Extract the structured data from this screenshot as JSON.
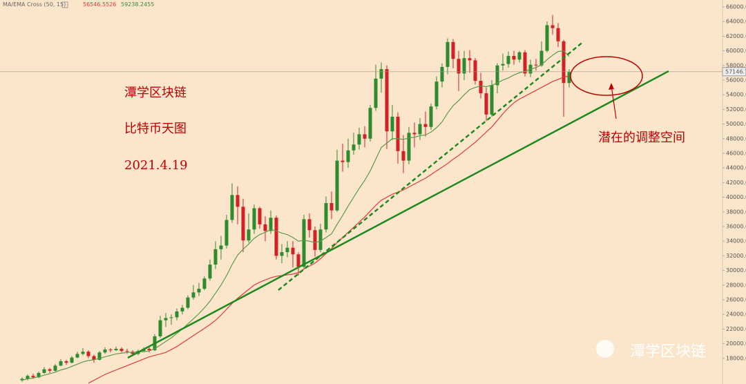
{
  "chart_data": {
    "type": "candlestick",
    "ylim": [
      14490,
      66940
    ],
    "yticks": [
      {
        "value": 18000,
        "label": "18000.00"
      },
      {
        "value": 20000,
        "label": "20000.00"
      },
      {
        "value": 22000,
        "label": "22000.00"
      },
      {
        "value": 24000,
        "label": "24000.00"
      },
      {
        "value": 26000,
        "label": "26000.00"
      },
      {
        "value": 28000,
        "label": "28000.00"
      },
      {
        "value": 30000,
        "label": "30000.00"
      },
      {
        "value": 32000,
        "label": "32000.00"
      },
      {
        "value": 34000,
        "label": "34000.00"
      },
      {
        "value": 36000,
        "label": "36000.00"
      },
      {
        "value": 38000,
        "label": "38000.00"
      },
      {
        "value": 40000,
        "label": "40000.00"
      },
      {
        "value": 42000,
        "label": "42000.00"
      },
      {
        "value": 44000,
        "label": "44000.00"
      },
      {
        "value": 46000,
        "label": "46000.00"
      },
      {
        "value": 48000,
        "label": "48000.00"
      },
      {
        "value": 50000,
        "label": "50000.00"
      },
      {
        "value": 52000,
        "label": "52000.00"
      },
      {
        "value": 54000,
        "label": "54000.00"
      },
      {
        "value": 56000,
        "label": "56000.00"
      },
      {
        "value": 58000,
        "label": "58000.00"
      },
      {
        "value": 60000,
        "label": "60000.00"
      },
      {
        "value": 62000,
        "label": "62000.00"
      },
      {
        "value": 64000,
        "label": "64000.00"
      },
      {
        "value": 66000,
        "label": "66000.00"
      }
    ],
    "up_color": "#2e8b2e",
    "down_color": "#d42020",
    "candles": [
      [
        15000,
        15400,
        14800,
        15200
      ],
      [
        15200,
        15800,
        15000,
        15600
      ],
      [
        15600,
        15900,
        15200,
        15400
      ],
      [
        15400,
        16200,
        15300,
        16000
      ],
      [
        16000,
        16800,
        15900,
        16500
      ],
      [
        16500,
        16700,
        16000,
        16300
      ],
      [
        16300,
        17200,
        16200,
        17000
      ],
      [
        17000,
        17900,
        16900,
        17600
      ],
      [
        17600,
        17800,
        17100,
        17400
      ],
      [
        17400,
        18300,
        17300,
        18100
      ],
      [
        18100,
        18900,
        18000,
        18600
      ],
      [
        18600,
        19400,
        18400,
        18900
      ],
      [
        18900,
        19100,
        18000,
        18300
      ],
      [
        18300,
        18500,
        17400,
        17800
      ],
      [
        17800,
        19000,
        17700,
        18800
      ],
      [
        18800,
        19500,
        18600,
        19200
      ],
      [
        19200,
        19400,
        18800,
        19100
      ],
      [
        19100,
        19600,
        19000,
        19300
      ],
      [
        19300,
        19500,
        18800,
        19000
      ],
      [
        19000,
        19300,
        18600,
        18900
      ],
      [
        18900,
        19100,
        18300,
        18600
      ],
      [
        18600,
        19200,
        18400,
        19000
      ],
      [
        19000,
        19500,
        18900,
        19300
      ],
      [
        19300,
        19500,
        18800,
        19100
      ],
      [
        19100,
        21300,
        19000,
        21000
      ],
      [
        21000,
        23800,
        20800,
        23200
      ],
      [
        23200,
        24200,
        22300,
        23500
      ],
      [
        23500,
        24000,
        22600,
        23600
      ],
      [
        23600,
        24800,
        23200,
        24400
      ],
      [
        24400,
        25300,
        24000,
        24900
      ],
      [
        24900,
        26600,
        24700,
        26300
      ],
      [
        26300,
        28000,
        26000,
        27000
      ],
      [
        27000,
        28300,
        26500,
        27500
      ],
      [
        27500,
        29200,
        27300,
        28900
      ],
      [
        28900,
        31500,
        28600,
        30800
      ],
      [
        30800,
        34000,
        30200,
        32900
      ],
      [
        32900,
        34700,
        31500,
        33400
      ],
      [
        33400,
        37600,
        33000,
        36900
      ],
      [
        36900,
        41900,
        36500,
        40300
      ],
      [
        40300,
        41500,
        36300,
        38700
      ],
      [
        38700,
        39800,
        32500,
        34100
      ],
      [
        34100,
        37800,
        33800,
        35600
      ],
      [
        35600,
        39000,
        35000,
        38500
      ],
      [
        38500,
        38700,
        35700,
        36300
      ],
      [
        36300,
        37400,
        34000,
        35400
      ],
      [
        35400,
        38200,
        35000,
        37200
      ],
      [
        37200,
        37500,
        31500,
        32000
      ],
      [
        32000,
        33600,
        31000,
        32500
      ],
      [
        32500,
        34000,
        31800,
        33100
      ],
      [
        33100,
        34000,
        30400,
        32200
      ],
      [
        32200,
        32500,
        29300,
        30500
      ],
      [
        30500,
        37600,
        30300,
        37000
      ],
      [
        37000,
        37800,
        34500,
        35500
      ],
      [
        35500,
        36000,
        31900,
        32800
      ],
      [
        32800,
        36400,
        32500,
        35600
      ],
      [
        35600,
        40100,
        35200,
        39200
      ],
      [
        39200,
        40800,
        37000,
        38200
      ],
      [
        38200,
        46500,
        38000,
        45000
      ],
      [
        45000,
        47300,
        43500,
        44800
      ],
      [
        44800,
        48000,
        44000,
        46400
      ],
      [
        46400,
        48800,
        45800,
        47200
      ],
      [
        47200,
        49500,
        46500,
        48600
      ],
      [
        48600,
        49700,
        46800,
        48000
      ],
      [
        48000,
        52600,
        47600,
        52200
      ],
      [
        52200,
        58100,
        51800,
        56200
      ],
      [
        56200,
        58400,
        54300,
        57500
      ],
      [
        57500,
        58000,
        46600,
        49000
      ],
      [
        49000,
        52600,
        47800,
        51000
      ],
      [
        51000,
        51600,
        44600,
        46300
      ],
      [
        46300,
        48500,
        43300,
        45000
      ],
      [
        45000,
        49600,
        44500,
        48800
      ],
      [
        48800,
        50200,
        46800,
        48600
      ],
      [
        48600,
        50800,
        47800,
        50000
      ],
      [
        50000,
        51700,
        48300,
        49600
      ],
      [
        49600,
        52800,
        49200,
        52400
      ],
      [
        52400,
        56500,
        52000,
        55800
      ],
      [
        55800,
        58300,
        55000,
        57800
      ],
      [
        57800,
        61700,
        56800,
        61200
      ],
      [
        61200,
        61600,
        57600,
        58900
      ],
      [
        58900,
        60000,
        54500,
        56900
      ],
      [
        56900,
        60000,
        56000,
        59000
      ],
      [
        59000,
        60100,
        57000,
        58700
      ],
      [
        58700,
        59000,
        55400,
        55900
      ],
      [
        55900,
        57000,
        53500,
        54200
      ],
      [
        54200,
        55000,
        50400,
        51300
      ],
      [
        51300,
        56000,
        51000,
        55300
      ],
      [
        55300,
        58300,
        54200,
        58000
      ],
      [
        58000,
        59600,
        57300,
        58200
      ],
      [
        58200,
        59900,
        57700,
        59300
      ],
      [
        59300,
        60000,
        58100,
        58800
      ],
      [
        58800,
        60000,
        58400,
        59800
      ],
      [
        59800,
        60100,
        56500,
        56900
      ],
      [
        56900,
        58800,
        56400,
        58100
      ],
      [
        58100,
        58900,
        57300,
        58000
      ],
      [
        58000,
        61300,
        57800,
        60000
      ],
      [
        60000,
        64000,
        59800,
        63500
      ],
      [
        63500,
        64900,
        62200,
        63100
      ],
      [
        63100,
        63800,
        60500,
        61300
      ],
      [
        61300,
        61500,
        51000,
        55600
      ],
      [
        55600,
        57500,
        55000,
        57100
      ]
    ],
    "series": [
      {
        "color": "#e03a3a",
        "values": [
          null,
          null,
          null,
          null,
          null,
          null,
          null,
          null,
          null,
          null,
          null,
          null,
          14600,
          15000,
          15400,
          15800,
          16100,
          16400,
          16700,
          17000,
          17300,
          17600,
          17900,
          18200,
          18400,
          18600,
          18800,
          19200,
          19600,
          20100,
          20600,
          21100,
          21600,
          22100,
          22600,
          23200,
          23900,
          24700,
          25500,
          26200,
          26800,
          27400,
          28000,
          28400,
          28700,
          29000,
          29200,
          29300,
          29400,
          29500,
          29700,
          30200,
          30600,
          31000,
          31600,
          32300,
          33000,
          33800,
          34500,
          35200,
          35900,
          36600,
          37300,
          38100,
          38900,
          39600,
          40000,
          40400,
          40700,
          41000,
          41400,
          41800,
          42200,
          42600,
          43100,
          43600,
          44100,
          44600,
          45200,
          45700,
          46300,
          46900,
          47500,
          48200,
          48900,
          49600,
          50500,
          51400,
          52200,
          52900,
          53400,
          53800,
          54200,
          54600,
          55000,
          55400,
          55800,
          56100,
          56400,
          56546.5526
        ]
      },
      {
        "color": "#5a9a4a",
        "values": [
          15000,
          15200,
          15300,
          15500,
          15700,
          15900,
          16100,
          16400,
          16600,
          16900,
          17200,
          17500,
          17700,
          17800,
          18000,
          18200,
          18400,
          18600,
          18700,
          18800,
          18800,
          18900,
          18900,
          19000,
          19300,
          19800,
          20300,
          20800,
          21400,
          22000,
          22700,
          23400,
          24100,
          24900,
          25800,
          26900,
          28000,
          29300,
          30800,
          32100,
          32900,
          33600,
          34400,
          34900,
          35200,
          35600,
          35400,
          35100,
          34900,
          34500,
          34000,
          34100,
          34000,
          33800,
          34000,
          34500,
          35000,
          36300,
          37500,
          38800,
          40000,
          41200,
          42300,
          43600,
          45200,
          46800,
          47400,
          48000,
          48000,
          47900,
          48100,
          48200,
          48400,
          48500,
          48900,
          49500,
          50300,
          51500,
          52500,
          53200,
          54000,
          54700,
          55000,
          55200,
          55100,
          55300,
          55600,
          56000,
          56300,
          56700,
          57000,
          57200,
          57500,
          57700,
          58100,
          58800,
          59400,
          59900,
          60000,
          59238.2455
        ]
      }
    ],
    "legend": {
      "title": "MA/EMA Cross (50, 15)",
      "values": [
        56546.5526,
        59238.2455
      ]
    },
    "last_price": 57146.77,
    "annotations": [
      "潭学区块链",
      "比特币天图",
      "2021.4.19",
      "潜在的调整空间"
    ],
    "watermark": "潭学区块链"
  }
}
